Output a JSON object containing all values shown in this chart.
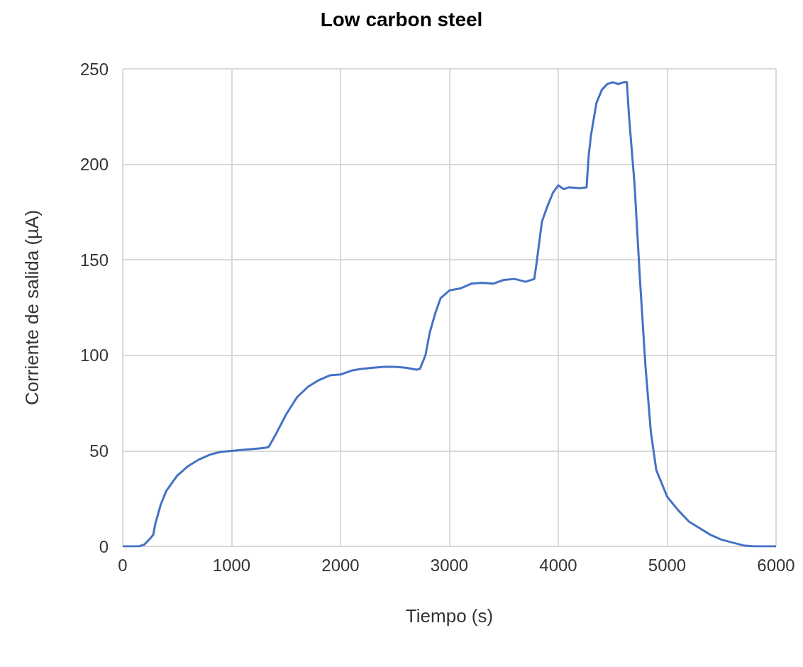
{
  "chart_data": {
    "type": "line",
    "title": "Low carbon steel",
    "xlabel": "Tiempo (s)",
    "ylabel": "Corriente de salida (µA)",
    "series": [
      {
        "color": "#4472c4",
        "x": [
          0,
          150,
          200,
          250,
          280,
          300,
          350,
          400,
          500,
          600,
          700,
          800,
          900,
          1000,
          1100,
          1200,
          1300,
          1340,
          1400,
          1500,
          1600,
          1700,
          1800,
          1900,
          2000,
          2100,
          2200,
          2300,
          2400,
          2500,
          2600,
          2700,
          2730,
          2780,
          2820,
          2870,
          2920,
          3000,
          3100,
          3200,
          3300,
          3400,
          3500,
          3600,
          3700,
          3780,
          3800,
          3850,
          3900,
          3950,
          4000,
          4050,
          4100,
          4200,
          4260,
          4280,
          4300,
          4350,
          4400,
          4450,
          4500,
          4550,
          4600,
          4630,
          4650,
          4700,
          4750,
          4800,
          4850,
          4900,
          5000,
          5100,
          5200,
          5300,
          5400,
          5500,
          5600,
          5700,
          5800,
          6000
        ],
        "values": [
          0,
          0,
          1,
          4,
          6,
          12,
          22,
          29,
          37,
          42,
          45.5,
          48,
          49.5,
          50,
          50.5,
          51,
          51.5,
          52,
          58,
          69,
          78,
          83.5,
          87,
          89.5,
          90,
          92,
          93,
          93.5,
          94,
          94,
          93.5,
          92.5,
          93,
          100,
          112,
          122,
          130,
          134,
          135,
          137.5,
          138,
          137.5,
          139.5,
          140,
          138.5,
          140,
          148,
          170,
          178,
          185,
          189,
          187,
          188,
          187.5,
          188,
          205,
          215,
          232,
          239,
          242,
          243,
          242,
          243,
          243,
          225,
          190,
          140,
          95,
          60,
          40,
          26,
          19,
          13,
          9.5,
          6,
          3.5,
          2,
          0.5,
          0,
          0
        ]
      }
    ],
    "xlim": [
      0,
      6000
    ],
    "xticks": [
      0,
      1000,
      2000,
      3000,
      4000,
      5000,
      6000
    ],
    "ylim": [
      0,
      250
    ],
    "yticks": [
      0,
      50,
      100,
      150,
      200,
      250
    ],
    "grid": true,
    "marker": "none",
    "line_style": "solid"
  }
}
